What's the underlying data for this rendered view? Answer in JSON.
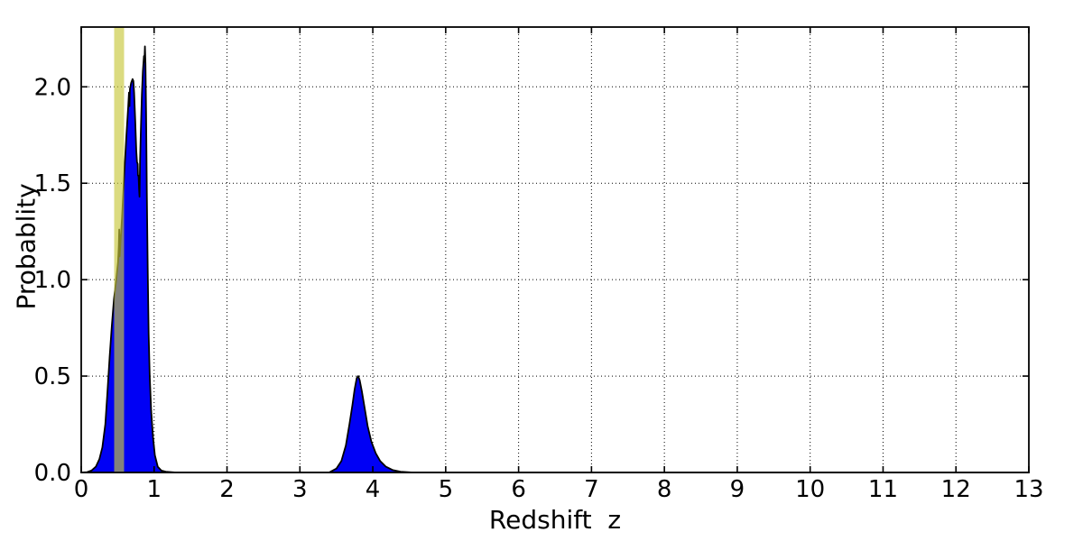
{
  "chart_data": {
    "type": "area",
    "title": "",
    "xlabel": "Redshift  z",
    "ylabel": "Probablity",
    "xlim": [
      0,
      13
    ],
    "ylim": [
      0,
      2.31
    ],
    "xticks": [
      0,
      1,
      2,
      3,
      4,
      5,
      6,
      7,
      8,
      9,
      10,
      11,
      12,
      13
    ],
    "xtick_labels": [
      "0",
      "1",
      "2",
      "3",
      "4",
      "5",
      "6",
      "7",
      "8",
      "9",
      "10",
      "11",
      "12",
      "13"
    ],
    "yticks": [
      0,
      0.5,
      1.0,
      1.5,
      2.0
    ],
    "ytick_labels": [
      "0.0",
      "0.5",
      "1.0",
      "1.5",
      "2.0"
    ],
    "grid": {
      "style": "dotted",
      "color": "#000000"
    },
    "background": "#ffffff",
    "axis_color": "#000000",
    "series": [
      {
        "name": "redshift-probability-pdf",
        "fill": "#0000f5",
        "stroke": "#000000",
        "points": [
          [
            0.0,
            0.0
          ],
          [
            0.08,
            0.002
          ],
          [
            0.14,
            0.01
          ],
          [
            0.2,
            0.03
          ],
          [
            0.25,
            0.07
          ],
          [
            0.29,
            0.13
          ],
          [
            0.33,
            0.25
          ],
          [
            0.36,
            0.42
          ],
          [
            0.39,
            0.6
          ],
          [
            0.42,
            0.76
          ],
          [
            0.45,
            0.9
          ],
          [
            0.48,
            1.0
          ],
          [
            0.505,
            1.09
          ],
          [
            0.515,
            1.17
          ],
          [
            0.521,
            1.26
          ],
          [
            0.528,
            1.12
          ],
          [
            0.54,
            1.2
          ],
          [
            0.56,
            1.32
          ],
          [
            0.59,
            1.55
          ],
          [
            0.62,
            1.75
          ],
          [
            0.645,
            1.9
          ],
          [
            0.655,
            1.97
          ],
          [
            0.662,
            1.9
          ],
          [
            0.668,
            1.99
          ],
          [
            0.685,
            2.02
          ],
          [
            0.705,
            2.04
          ],
          [
            0.715,
            2.03
          ],
          [
            0.725,
            1.97
          ],
          [
            0.74,
            1.83
          ],
          [
            0.755,
            1.67
          ],
          [
            0.765,
            1.61
          ],
          [
            0.775,
            1.6
          ],
          [
            0.779,
            1.54
          ],
          [
            0.786,
            1.54
          ],
          [
            0.793,
            1.47
          ],
          [
            0.8,
            1.43
          ],
          [
            0.807,
            1.62
          ],
          [
            0.818,
            1.78
          ],
          [
            0.832,
            1.96
          ],
          [
            0.846,
            2.08
          ],
          [
            0.86,
            2.16
          ],
          [
            0.867,
            2.13
          ],
          [
            0.874,
            2.21
          ],
          [
            0.881,
            2.12
          ],
          [
            0.89,
            1.86
          ],
          [
            0.9,
            1.45
          ],
          [
            0.912,
            1.05
          ],
          [
            0.925,
            0.72
          ],
          [
            0.94,
            0.5
          ],
          [
            0.96,
            0.32
          ],
          [
            0.985,
            0.18
          ],
          [
            1.01,
            0.09
          ],
          [
            1.05,
            0.03
          ],
          [
            1.1,
            0.01
          ],
          [
            1.16,
            0.004
          ],
          [
            1.3,
            0.0
          ],
          [
            2.0,
            0.0
          ],
          [
            3.0,
            0.0
          ],
          [
            3.4,
            0.0
          ],
          [
            3.5,
            0.02
          ],
          [
            3.57,
            0.06
          ],
          [
            3.63,
            0.14
          ],
          [
            3.68,
            0.25
          ],
          [
            3.72,
            0.35
          ],
          [
            3.75,
            0.43
          ],
          [
            3.78,
            0.49
          ],
          [
            3.8,
            0.5
          ],
          [
            3.82,
            0.48
          ],
          [
            3.85,
            0.42
          ],
          [
            3.89,
            0.33
          ],
          [
            3.93,
            0.24
          ],
          [
            3.98,
            0.16
          ],
          [
            4.04,
            0.1
          ],
          [
            4.1,
            0.06
          ],
          [
            4.18,
            0.03
          ],
          [
            4.27,
            0.013
          ],
          [
            4.38,
            0.004
          ],
          [
            4.55,
            0.0
          ],
          [
            6.0,
            0.0
          ],
          [
            9.0,
            0.0
          ],
          [
            13.0,
            0.0
          ]
        ]
      }
    ],
    "annotations": [
      {
        "type": "vertical-band",
        "name": "redshift-marker-band",
        "x_center": 0.52,
        "x_width": 0.136,
        "color": "#c8c83c",
        "opacity": 0.65
      }
    ]
  }
}
